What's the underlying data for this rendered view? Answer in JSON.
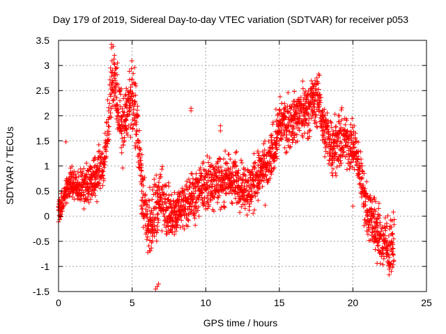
{
  "chart_data": {
    "type": "scatter",
    "title": "Day 179 of 2019, Sidereal Day-to-day VTEC variation (SDTVAR) for receiver p053",
    "xlabel": "GPS time / hours",
    "ylabel": "SDTVAR / TECUs",
    "xlim": [
      0,
      25
    ],
    "ylim": [
      -1.5,
      3.5
    ],
    "xticks": [
      0,
      5,
      10,
      15,
      20,
      25
    ],
    "xtick_labels": [
      "0",
      "5",
      "10",
      "15",
      "20",
      "25"
    ],
    "yticks": [
      -1.5,
      -1,
      -0.5,
      0,
      0.5,
      1,
      1.5,
      2,
      2.5,
      3,
      3.5
    ],
    "ytick_labels": [
      "-1.5",
      "-1",
      "-0.5",
      "0",
      "0.5",
      "1",
      "1.5",
      "2",
      "2.5",
      "3",
      "3.5"
    ],
    "grid": true,
    "marker": "+",
    "marker_color": "#ff0000",
    "series": [
      {
        "name": "SDTVAR",
        "trend": [
          [
            0.0,
            0.1
          ],
          [
            0.2,
            0.2
          ],
          [
            0.4,
            0.35
          ],
          [
            0.6,
            0.6
          ],
          [
            0.8,
            0.75
          ],
          [
            1.0,
            0.6
          ],
          [
            1.3,
            0.55
          ],
          [
            1.6,
            0.6
          ],
          [
            2.0,
            0.65
          ],
          [
            2.3,
            0.75
          ],
          [
            2.6,
            0.8
          ],
          [
            2.9,
            1.05
          ],
          [
            3.1,
            0.95
          ],
          [
            3.3,
            1.5
          ],
          [
            3.5,
            2.3
          ],
          [
            3.7,
            2.8
          ],
          [
            3.9,
            2.55
          ],
          [
            4.1,
            2.05
          ],
          [
            4.4,
            1.75
          ],
          [
            4.7,
            2.2
          ],
          [
            5.0,
            2.35
          ],
          [
            5.3,
            2.0
          ],
          [
            5.5,
            1.2
          ],
          [
            5.7,
            0.45
          ],
          [
            5.9,
            0.1
          ],
          [
            6.1,
            -0.2
          ],
          [
            6.3,
            -0.05
          ],
          [
            6.5,
            0.1
          ],
          [
            6.7,
            0.15
          ],
          [
            7.0,
            0.4
          ],
          [
            7.3,
            0.2
          ],
          [
            7.6,
            0.0
          ],
          [
            8.0,
            0.1
          ],
          [
            8.4,
            0.2
          ],
          [
            8.8,
            0.35
          ],
          [
            9.2,
            0.4
          ],
          [
            9.5,
            0.45
          ],
          [
            9.8,
            0.6
          ],
          [
            10.2,
            0.55
          ],
          [
            10.6,
            0.75
          ],
          [
            11.0,
            0.7
          ],
          [
            11.4,
            0.75
          ],
          [
            11.8,
            0.7
          ],
          [
            12.2,
            0.7
          ],
          [
            12.6,
            0.6
          ],
          [
            13.0,
            0.5
          ],
          [
            13.4,
            0.75
          ],
          [
            13.8,
            0.9
          ],
          [
            14.2,
            0.9
          ],
          [
            14.5,
            1.25
          ],
          [
            14.8,
            1.55
          ],
          [
            15.1,
            1.85
          ],
          [
            15.4,
            1.85
          ],
          [
            15.7,
            1.85
          ],
          [
            16.0,
            1.95
          ],
          [
            16.3,
            2.0
          ],
          [
            16.6,
            2.1
          ],
          [
            16.9,
            2.15
          ],
          [
            17.2,
            2.3
          ],
          [
            17.5,
            2.3
          ],
          [
            17.8,
            2.2
          ],
          [
            18.1,
            1.65
          ],
          [
            18.4,
            1.45
          ],
          [
            18.7,
            1.45
          ],
          [
            19.0,
            1.5
          ],
          [
            19.3,
            1.5
          ],
          [
            19.6,
            1.5
          ],
          [
            19.9,
            1.45
          ],
          [
            20.2,
            1.25
          ],
          [
            20.5,
            0.85
          ],
          [
            20.8,
            0.35
          ],
          [
            21.0,
            0.05
          ],
          [
            21.3,
            0.0
          ],
          [
            21.6,
            -0.25
          ],
          [
            21.9,
            -0.45
          ],
          [
            22.2,
            -0.6
          ],
          [
            22.5,
            -0.7
          ],
          [
            22.8,
            -0.45
          ]
        ],
        "spread": [
          [
            0.0,
            0.2
          ],
          [
            2.0,
            0.35
          ],
          [
            3.5,
            0.45
          ],
          [
            4.5,
            0.55
          ],
          [
            5.5,
            0.6
          ],
          [
            6.5,
            0.6
          ],
          [
            7.5,
            0.45
          ],
          [
            10.0,
            0.45
          ],
          [
            12.0,
            0.45
          ],
          [
            14.0,
            0.45
          ],
          [
            16.0,
            0.45
          ],
          [
            18.0,
            0.45
          ],
          [
            19.0,
            0.5
          ],
          [
            20.5,
            0.4
          ],
          [
            21.5,
            0.5
          ],
          [
            22.8,
            0.45
          ]
        ],
        "peaks": [
          [
            3.6,
            3.42
          ],
          [
            3.6,
            3.35
          ],
          [
            3.8,
            3.2
          ],
          [
            4.0,
            3.05
          ],
          [
            6.6,
            -1.45
          ],
          [
            6.8,
            -1.35
          ],
          [
            6.7,
            -1.4
          ],
          [
            11.0,
            1.8
          ],
          [
            11.0,
            1.7
          ],
          [
            9.0,
            2.1
          ],
          [
            9.0,
            2.15
          ],
          [
            17.6,
            2.68
          ],
          [
            17.5,
            2.62
          ],
          [
            22.5,
            -0.95
          ],
          [
            22.4,
            -0.92
          ],
          [
            0.5,
            1.48
          ],
          [
            14.9,
            2.0
          ],
          [
            20.0,
            0.2
          ],
          [
            10.1,
            1.2
          ]
        ]
      }
    ]
  }
}
